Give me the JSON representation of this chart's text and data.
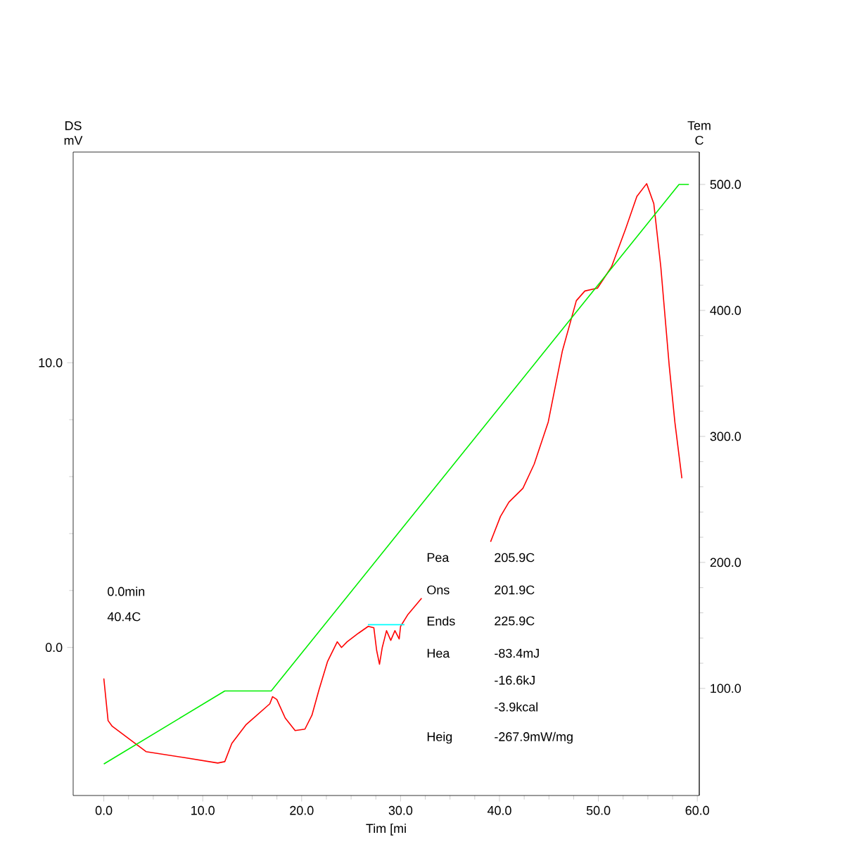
{
  "chart_data": {
    "type": "line",
    "xlabel": "Tim [mi",
    "ylabel": "DS mV",
    "y2label": "Tem C",
    "xlim": [
      -3.1,
      60.2
    ],
    "ylim": [
      -5.2,
      17.4
    ],
    "y2lim": [
      15,
      525.7
    ],
    "xticks": [
      {
        "value": 0,
        "label": "0.0"
      },
      {
        "value": 10,
        "label": "10.0"
      },
      {
        "value": 20,
        "label": "20.0"
      },
      {
        "value": 30,
        "label": "30.0"
      },
      {
        "value": 40,
        "label": "40.0"
      },
      {
        "value": 50,
        "label": "50.0"
      },
      {
        "value": 60,
        "label": "60.0"
      }
    ],
    "yticks": [
      {
        "value": 0,
        "label": "0.0"
      },
      {
        "value": 10,
        "label": "10.0"
      }
    ],
    "y2ticks": [
      {
        "value": 100,
        "label": "100.0"
      },
      {
        "value": 200,
        "label": "200.0"
      },
      {
        "value": 300,
        "label": "300.0"
      },
      {
        "value": 400,
        "label": "400.0"
      },
      {
        "value": 500,
        "label": "500.0"
      }
    ],
    "grid": false,
    "marker": "none",
    "line_style": "solid",
    "series": [
      {
        "color": "#ff0000",
        "axis": "y",
        "x": [
          0.0,
          0.43,
          0.85,
          4.27,
          7.96,
          11.52,
          12.23,
          12.94,
          14.36,
          16.78,
          17.06,
          17.49,
          18.34,
          19.34,
          20.33,
          21.04,
          21.75,
          22.61,
          23.6,
          24.03,
          24.6,
          25.74,
          26.73,
          27.3,
          27.58,
          27.87,
          28.15,
          28.58,
          29.01,
          29.43,
          29.86,
          30.0,
          30.71,
          32.13,
          35.6,
          39.1,
          40.1,
          40.95,
          42.37,
          43.51,
          44.93,
          46.35,
          47.77,
          48.63,
          49.91,
          51.33,
          52.75,
          53.89,
          54.88,
          55.6,
          56.31,
          57.16,
          57.73,
          58.44
        ],
        "values": [
          -1.09,
          -2.57,
          -2.77,
          -3.66,
          -3.86,
          -4.06,
          -4.01,
          -3.37,
          -2.72,
          -1.98,
          -1.73,
          -1.83,
          -2.48,
          -2.92,
          -2.87,
          -2.38,
          -1.49,
          -0.5,
          0.2,
          0.0,
          0.2,
          0.5,
          0.74,
          0.69,
          -0.1,
          -0.59,
          0.0,
          0.59,
          0.25,
          0.59,
          0.3,
          0.74,
          1.14,
          1.73,
          null,
          3.71,
          4.6,
          5.1,
          5.59,
          6.44,
          7.92,
          10.4,
          12.18,
          12.52,
          12.62,
          13.37,
          14.7,
          15.84,
          16.29,
          15.59,
          13.37,
          9.9,
          7.92,
          5.94
        ]
      },
      {
        "color": "#00ee00",
        "axis": "y2",
        "x": [
          0.0,
          12.23,
          16.92,
          58.15,
          59.15
        ],
        "values": [
          40,
          98,
          98,
          500,
          500
        ]
      },
      {
        "color": "#00ffff",
        "axis": "y",
        "x": [
          26.7,
          30.4
        ],
        "values": [
          0.8,
          0.8
        ]
      }
    ],
    "annotations": [
      "0.0min",
      "40.4C",
      "Pea",
      "205.9C",
      "Ons",
      "201.9C",
      "Ends",
      "225.9C",
      "Hea",
      "-83.4mJ",
      "-16.6kJ",
      "-3.9kcal",
      "Heig",
      "-267.9mW/mg"
    ]
  }
}
